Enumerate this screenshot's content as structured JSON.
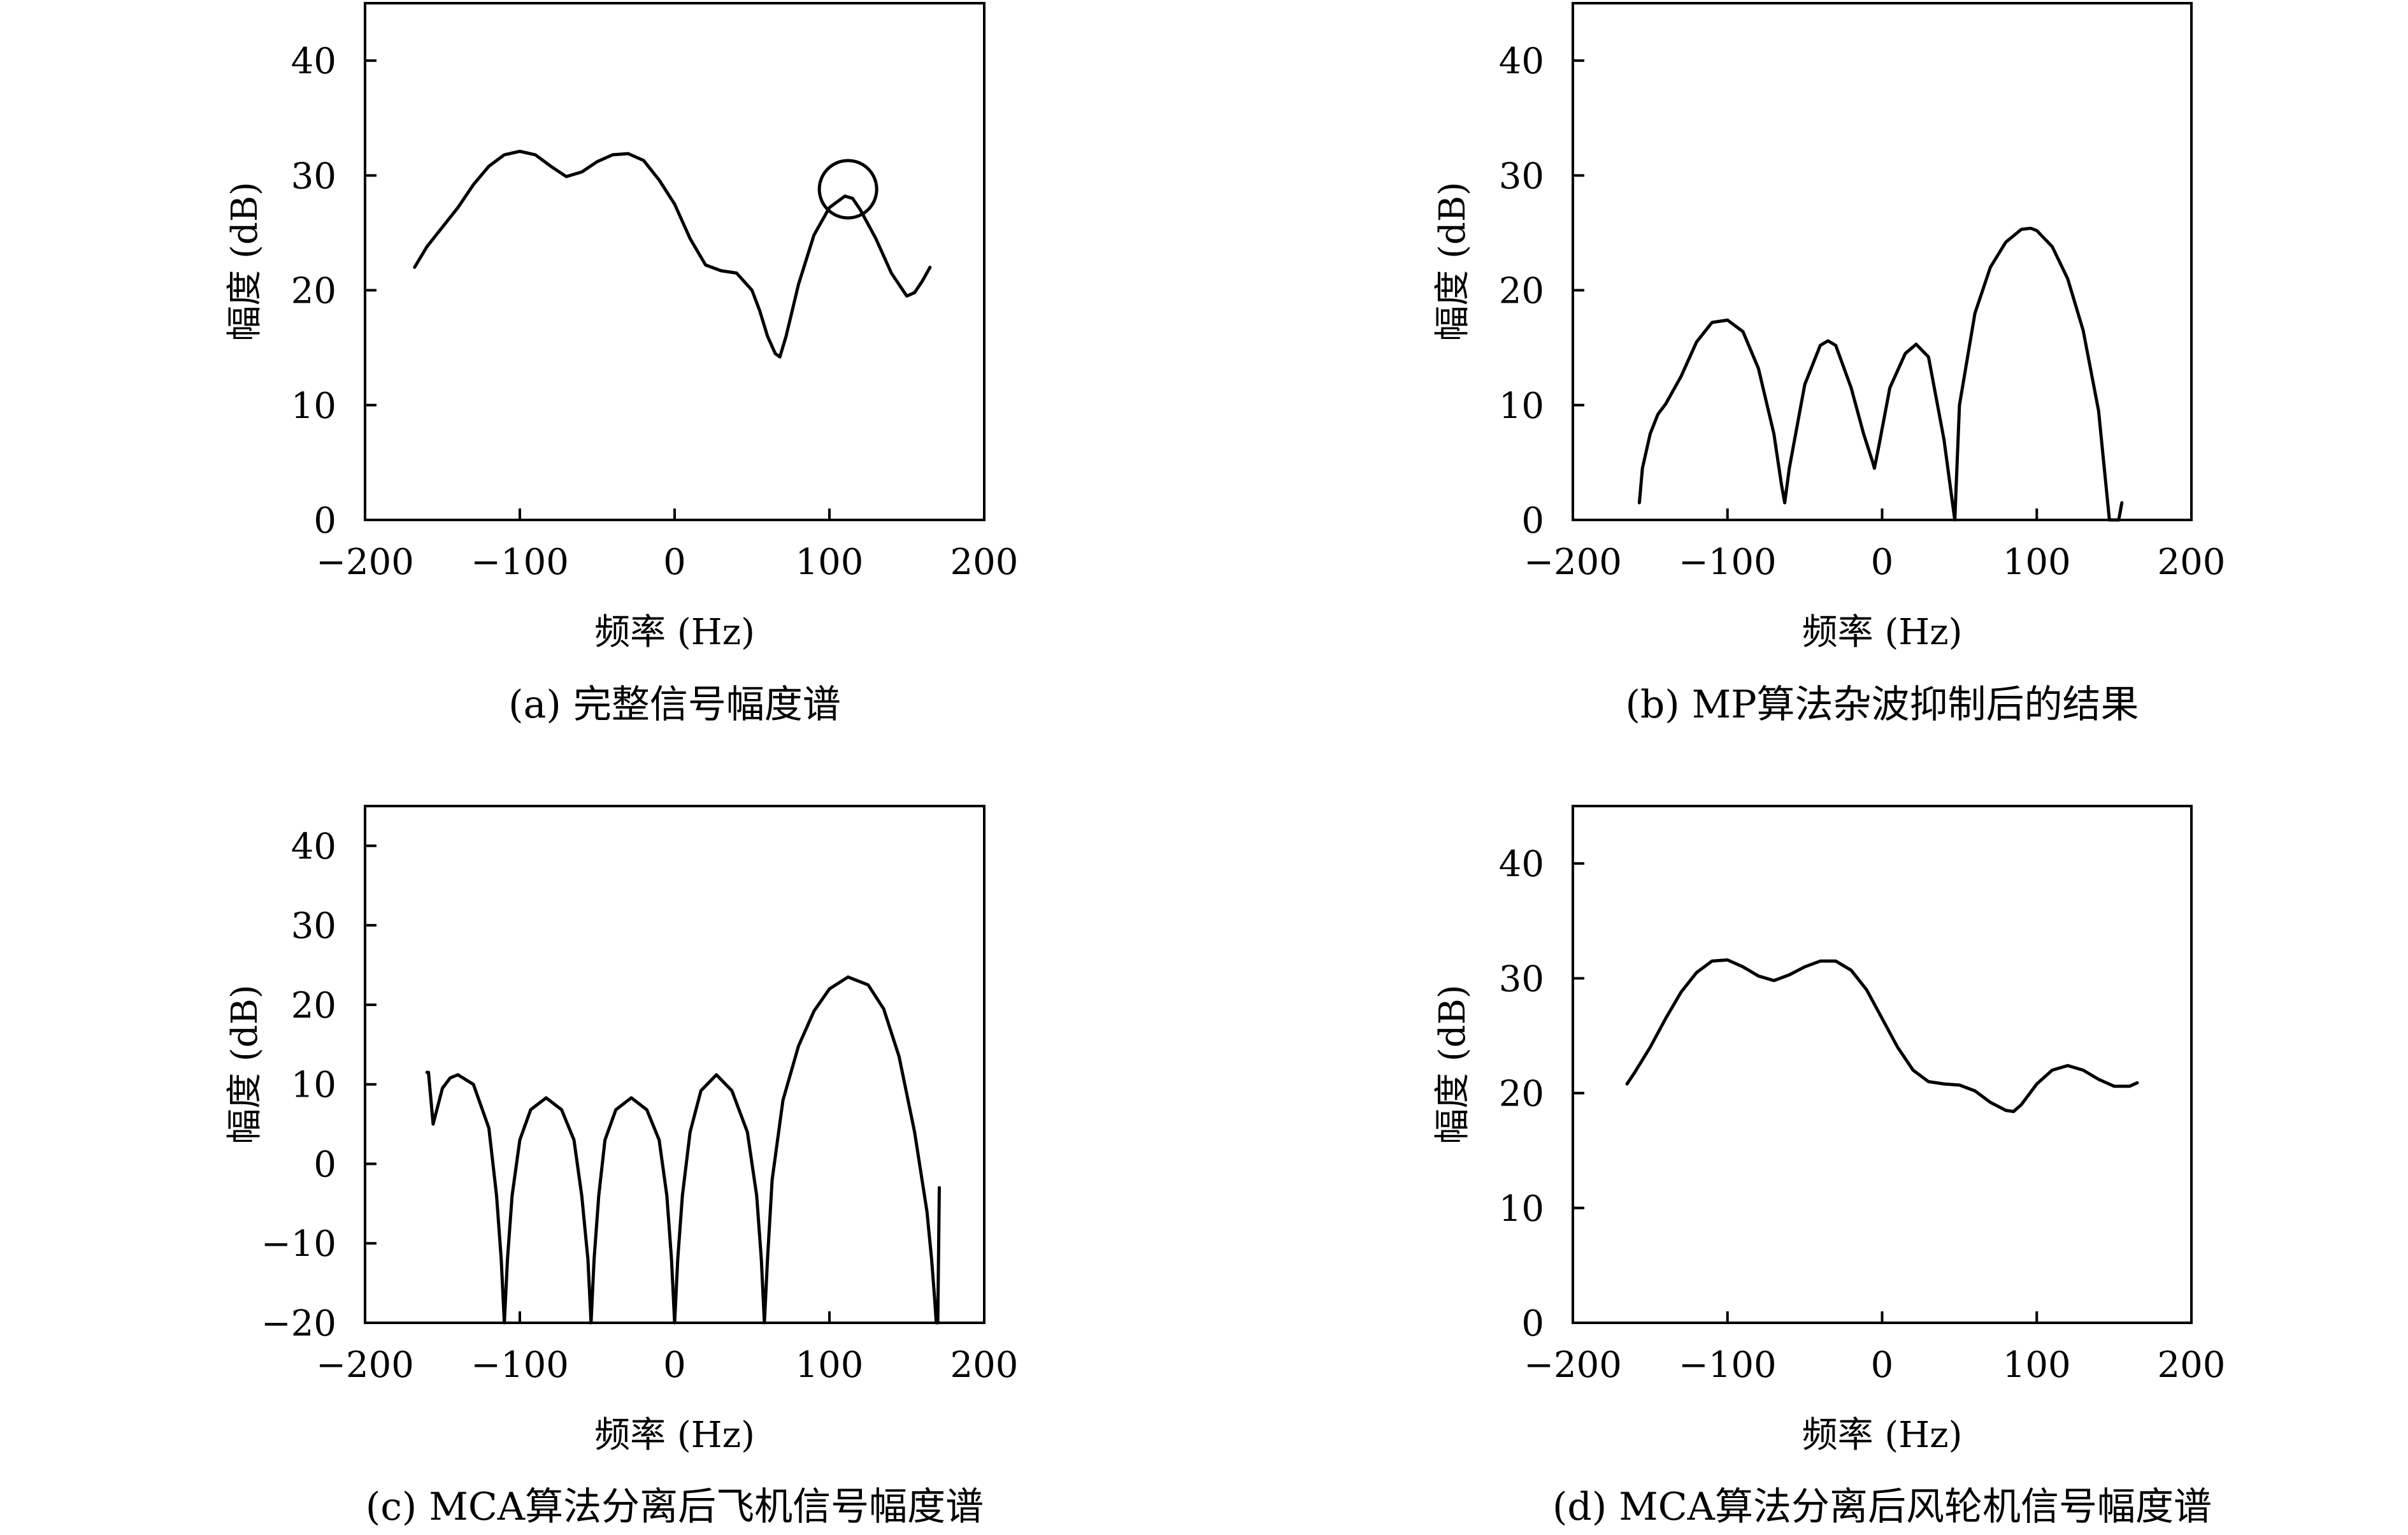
{
  "chart_data": [
    {
      "type": "line",
      "caption": "(a) 完整信号幅度谱",
      "xlabel": "频率 (Hz)",
      "ylabel": "幅度 (dB)",
      "xlim": [
        -200,
        200
      ],
      "ylim": [
        0,
        45
      ],
      "xticks": [
        -200,
        -100,
        0,
        100,
        200
      ],
      "yticks": [
        0,
        10,
        20,
        30,
        40
      ],
      "grid": false,
      "annotation": {
        "shape": "circle",
        "x": 112,
        "y": 28.8
      },
      "x": [
        -168,
        -160,
        -150,
        -140,
        -130,
        -120,
        -110,
        -100,
        -90,
        -80,
        -70,
        -60,
        -50,
        -40,
        -30,
        -20,
        -10,
        0,
        10,
        20,
        30,
        40,
        50,
        55,
        60,
        65,
        68,
        72,
        80,
        90,
        100,
        110,
        115,
        120,
        130,
        140,
        150,
        155,
        160,
        165
      ],
      "y": [
        22,
        23.8,
        25.5,
        27.2,
        29.2,
        30.8,
        31.8,
        32.1,
        31.8,
        30.8,
        29.9,
        30.3,
        31.2,
        31.8,
        31.9,
        31.3,
        29.6,
        27.5,
        24.5,
        22.2,
        21.7,
        21.5,
        20,
        18.2,
        16,
        14.5,
        14.2,
        16,
        20.5,
        24.8,
        27.2,
        28.2,
        28,
        27,
        24.5,
        21.5,
        19.5,
        19.8,
        20.8,
        22
      ]
    },
    {
      "type": "line",
      "caption": "(b) MP算法杂波抑制后的结果",
      "xlabel": "频率 (Hz)",
      "ylabel": "幅度 (dB)",
      "xlim": [
        -200,
        200
      ],
      "ylim": [
        0,
        45
      ],
      "xticks": [
        -200,
        -100,
        0,
        100,
        200
      ],
      "yticks": [
        0,
        10,
        20,
        30,
        40
      ],
      "grid": false,
      "x": [
        -157,
        -155,
        -150,
        -145,
        -140,
        -130,
        -120,
        -110,
        -100,
        -90,
        -80,
        -70,
        -65,
        -63,
        -60,
        -50,
        -40,
        -35,
        -30,
        -20,
        -12,
        -6,
        -5,
        -2,
        5,
        15,
        22,
        30,
        40,
        45,
        47,
        50,
        60,
        70,
        80,
        90,
        96,
        100,
        110,
        120,
        130,
        140,
        147,
        150,
        153,
        155
      ],
      "y": [
        1.5,
        4.5,
        7.5,
        9.2,
        10.1,
        12.5,
        15.5,
        17.2,
        17.4,
        16.4,
        13.2,
        7.5,
        3,
        1.5,
        4.5,
        11.8,
        15.2,
        15.6,
        15.2,
        11.5,
        7.5,
        5,
        4.5,
        6.5,
        11.5,
        14.5,
        15.3,
        14.2,
        7,
        2,
        0,
        10,
        18,
        22,
        24.2,
        25.3,
        25.4,
        25.2,
        23.8,
        21,
        16.5,
        9.5,
        0,
        0,
        0,
        1.5
      ]
    },
    {
      "type": "line",
      "caption": "(c) MCA算法分离后飞机信号幅度谱",
      "xlabel": "频率 (Hz)",
      "ylabel": "幅度 (dB)",
      "xlim": [
        -200,
        200
      ],
      "ylim": [
        -20,
        45
      ],
      "xticks": [
        -200,
        -100,
        0,
        100,
        200
      ],
      "yticks": [
        -20,
        -10,
        0,
        10,
        20,
        30,
        40
      ],
      "grid": false,
      "x": [
        -160,
        -159,
        -156,
        -150,
        -145,
        -140,
        -130,
        -120,
        -115,
        -112,
        -110,
        -108,
        -105,
        -100,
        -93,
        -83,
        -73,
        -65,
        -60,
        -56,
        -54,
        -52,
        -49,
        -45,
        -38,
        -28,
        -18,
        -10,
        -5,
        -2,
        0,
        2,
        5,
        10,
        17,
        27,
        37,
        47,
        53,
        56,
        58,
        60,
        63,
        70,
        80,
        90,
        100,
        112,
        125,
        135,
        145,
        155,
        163,
        166,
        168,
        169,
        170,
        171
      ],
      "y": [
        11.5,
        11.5,
        5,
        9.5,
        10.8,
        11.2,
        10,
        4.5,
        -4,
        -12,
        -20,
        -12,
        -4,
        3,
        6.8,
        8.3,
        6.8,
        3,
        -4,
        -12,
        -20,
        -12,
        -4,
        3,
        6.8,
        8.3,
        6.8,
        3,
        -4,
        -12,
        -20,
        -12,
        -4,
        4,
        9.2,
        11.2,
        9.2,
        4,
        -4,
        -12,
        -20,
        -12,
        -2,
        8,
        14.8,
        19.2,
        22,
        23.5,
        22.5,
        19.5,
        13.5,
        4,
        -6,
        -12,
        -17,
        -20,
        -20,
        -3
      ]
    },
    {
      "type": "line",
      "caption": "(d) MCA算法分离后风轮机信号幅度谱",
      "xlabel": "频率 (Hz)",
      "ylabel": "幅度 (dB)",
      "xlim": [
        -200,
        200
      ],
      "ylim": [
        0,
        45
      ],
      "xticks": [
        -200,
        -100,
        0,
        100,
        200
      ],
      "yticks": [
        0,
        10,
        20,
        30,
        40
      ],
      "grid": false,
      "x": [
        -165,
        -160,
        -150,
        -140,
        -130,
        -120,
        -110,
        -100,
        -90,
        -80,
        -70,
        -60,
        -50,
        -40,
        -30,
        -20,
        -10,
        0,
        10,
        20,
        30,
        40,
        50,
        60,
        70,
        80,
        85,
        90,
        100,
        110,
        120,
        130,
        140,
        150,
        160,
        165
      ],
      "y": [
        20.8,
        21.8,
        24,
        26.5,
        28.8,
        30.5,
        31.5,
        31.6,
        31,
        30.2,
        29.8,
        30.3,
        31,
        31.5,
        31.5,
        30.7,
        29,
        26.5,
        24,
        22,
        21,
        20.8,
        20.7,
        20.2,
        19.2,
        18.5,
        18.4,
        19,
        20.8,
        22,
        22.4,
        22,
        21.2,
        20.6,
        20.6,
        20.9
      ]
    }
  ]
}
